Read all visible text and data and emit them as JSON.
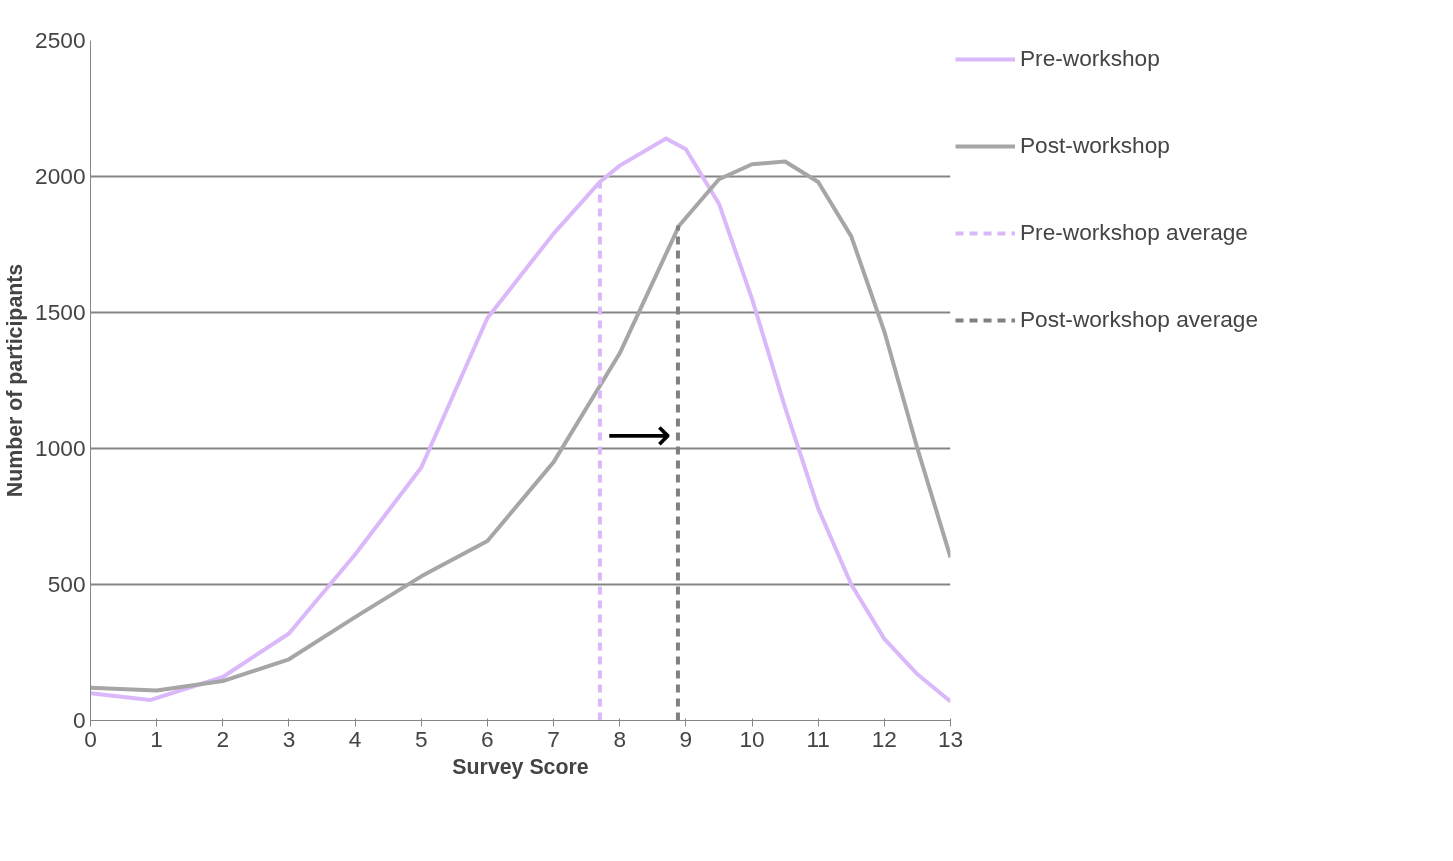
{
  "chart_data": {
    "type": "line",
    "xlabel": "Survey Score",
    "ylabel": "Number of participants",
    "xlim": [
      0,
      13
    ],
    "xticks": [
      0,
      1,
      2,
      3,
      4,
      5,
      6,
      7,
      8,
      9,
      10,
      11,
      12,
      13
    ],
    "ylim": [
      0,
      2500
    ],
    "yticks": [
      0,
      500,
      1000,
      1500,
      2000,
      2500
    ],
    "annotations": [
      "⟶"
    ],
    "grid": "y",
    "legend": "right",
    "marker": "none",
    "series": [
      {
        "name": "Pre-workshop",
        "color": "#dab8f9",
        "line_style": "solid",
        "x": [
          0,
          0.9,
          2,
          3,
          4,
          5,
          6,
          7,
          7.7,
          8,
          8.7,
          9,
          9.5,
          10,
          10.5,
          11,
          11.5,
          12,
          12.5,
          13
        ],
        "values": [
          100,
          75,
          160,
          320,
          610,
          930,
          1480,
          1790,
          1980,
          2040,
          2140,
          2100,
          1900,
          1550,
          1150,
          780,
          500,
          300,
          170,
          70
        ]
      },
      {
        "name": "Post-workshop",
        "color": "#a6a6a6",
        "line_style": "solid",
        "x": [
          0,
          1,
          2,
          3,
          4,
          5,
          6,
          7,
          8,
          8.9,
          9.5,
          10,
          10.5,
          11,
          11.5,
          12,
          12.5,
          13
        ],
        "values": [
          120,
          110,
          145,
          225,
          380,
          530,
          660,
          950,
          1350,
          1820,
          1990,
          2045,
          2055,
          1980,
          1780,
          1430,
          1000,
          600
        ]
      },
      {
        "name": "Pre-workshop average",
        "color": "#dab8f9",
        "line_style": "dashed",
        "x": [
          7.7,
          7.7
        ],
        "values": [
          0,
          1980
        ]
      },
      {
        "name": "Post-workshop average",
        "color": "#808080",
        "line_style": "dashed",
        "x": [
          8.88,
          8.88
        ],
        "values": [
          0,
          1820
        ]
      }
    ]
  }
}
